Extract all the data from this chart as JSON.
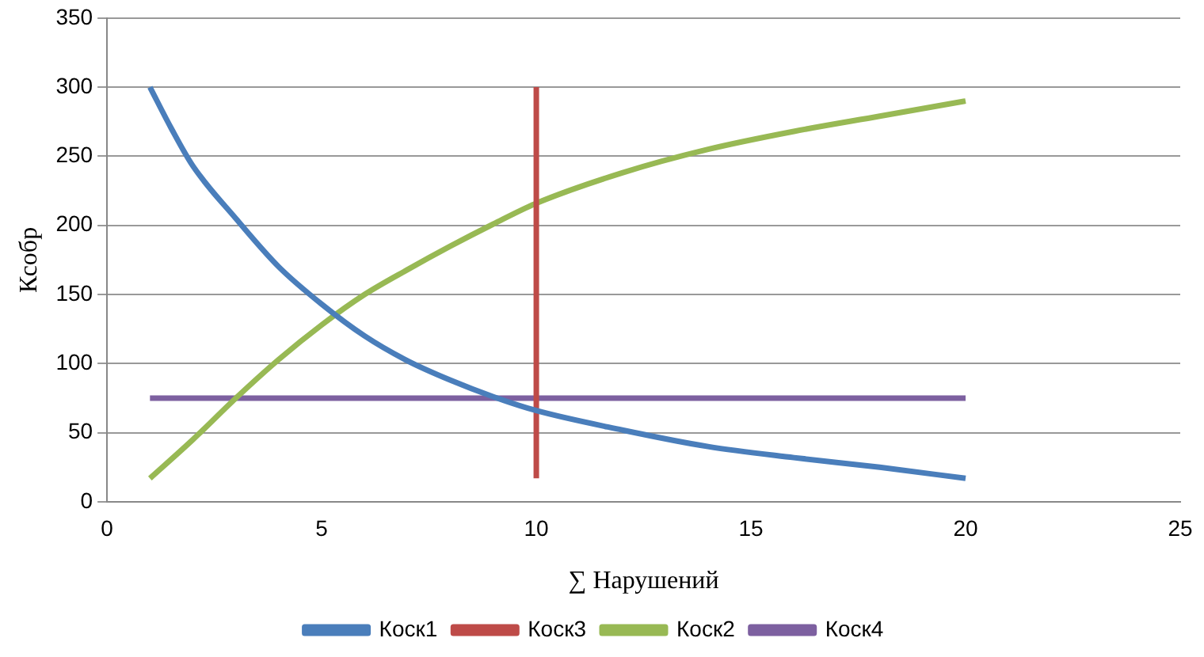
{
  "chart_data": {
    "type": "line",
    "xlabel": "∑ Нарушений",
    "ylabel": "Ксобр",
    "xlim": [
      0,
      25
    ],
    "xticks": [
      0,
      5,
      10,
      15,
      20,
      25
    ],
    "ylim": [
      0,
      350
    ],
    "yticks": [
      0,
      50,
      100,
      150,
      200,
      250,
      300,
      350
    ],
    "grid": "y",
    "legend": "bottom",
    "marker": "none",
    "line_style": "solid",
    "series": [
      {
        "name": "Коск1",
        "color": "#4a7ebb",
        "x": [
          1,
          1.5,
          2,
          3,
          4,
          5,
          6,
          7,
          8,
          9,
          10,
          12,
          14,
          16,
          18,
          20
        ],
        "values": [
          300,
          270,
          243,
          205,
          170,
          143,
          120,
          102,
          88,
          76,
          66,
          52,
          40,
          32,
          25,
          17
        ]
      },
      {
        "name": "Коск3",
        "color": "#be4b48",
        "x": [
          10,
          10
        ],
        "values": [
          17,
          300
        ]
      },
      {
        "name": "Коск2",
        "color": "#98b954",
        "x": [
          1,
          2,
          3,
          4,
          5,
          6,
          7,
          8,
          9,
          10,
          12,
          14,
          16,
          18,
          20
        ],
        "values": [
          17,
          45,
          75,
          103,
          128,
          150,
          168,
          185,
          201,
          216,
          238,
          255,
          268,
          279,
          290
        ]
      },
      {
        "name": "Коск4",
        "color": "#7d60a0",
        "x": [
          1,
          20
        ],
        "values": [
          75,
          75
        ]
      }
    ]
  }
}
